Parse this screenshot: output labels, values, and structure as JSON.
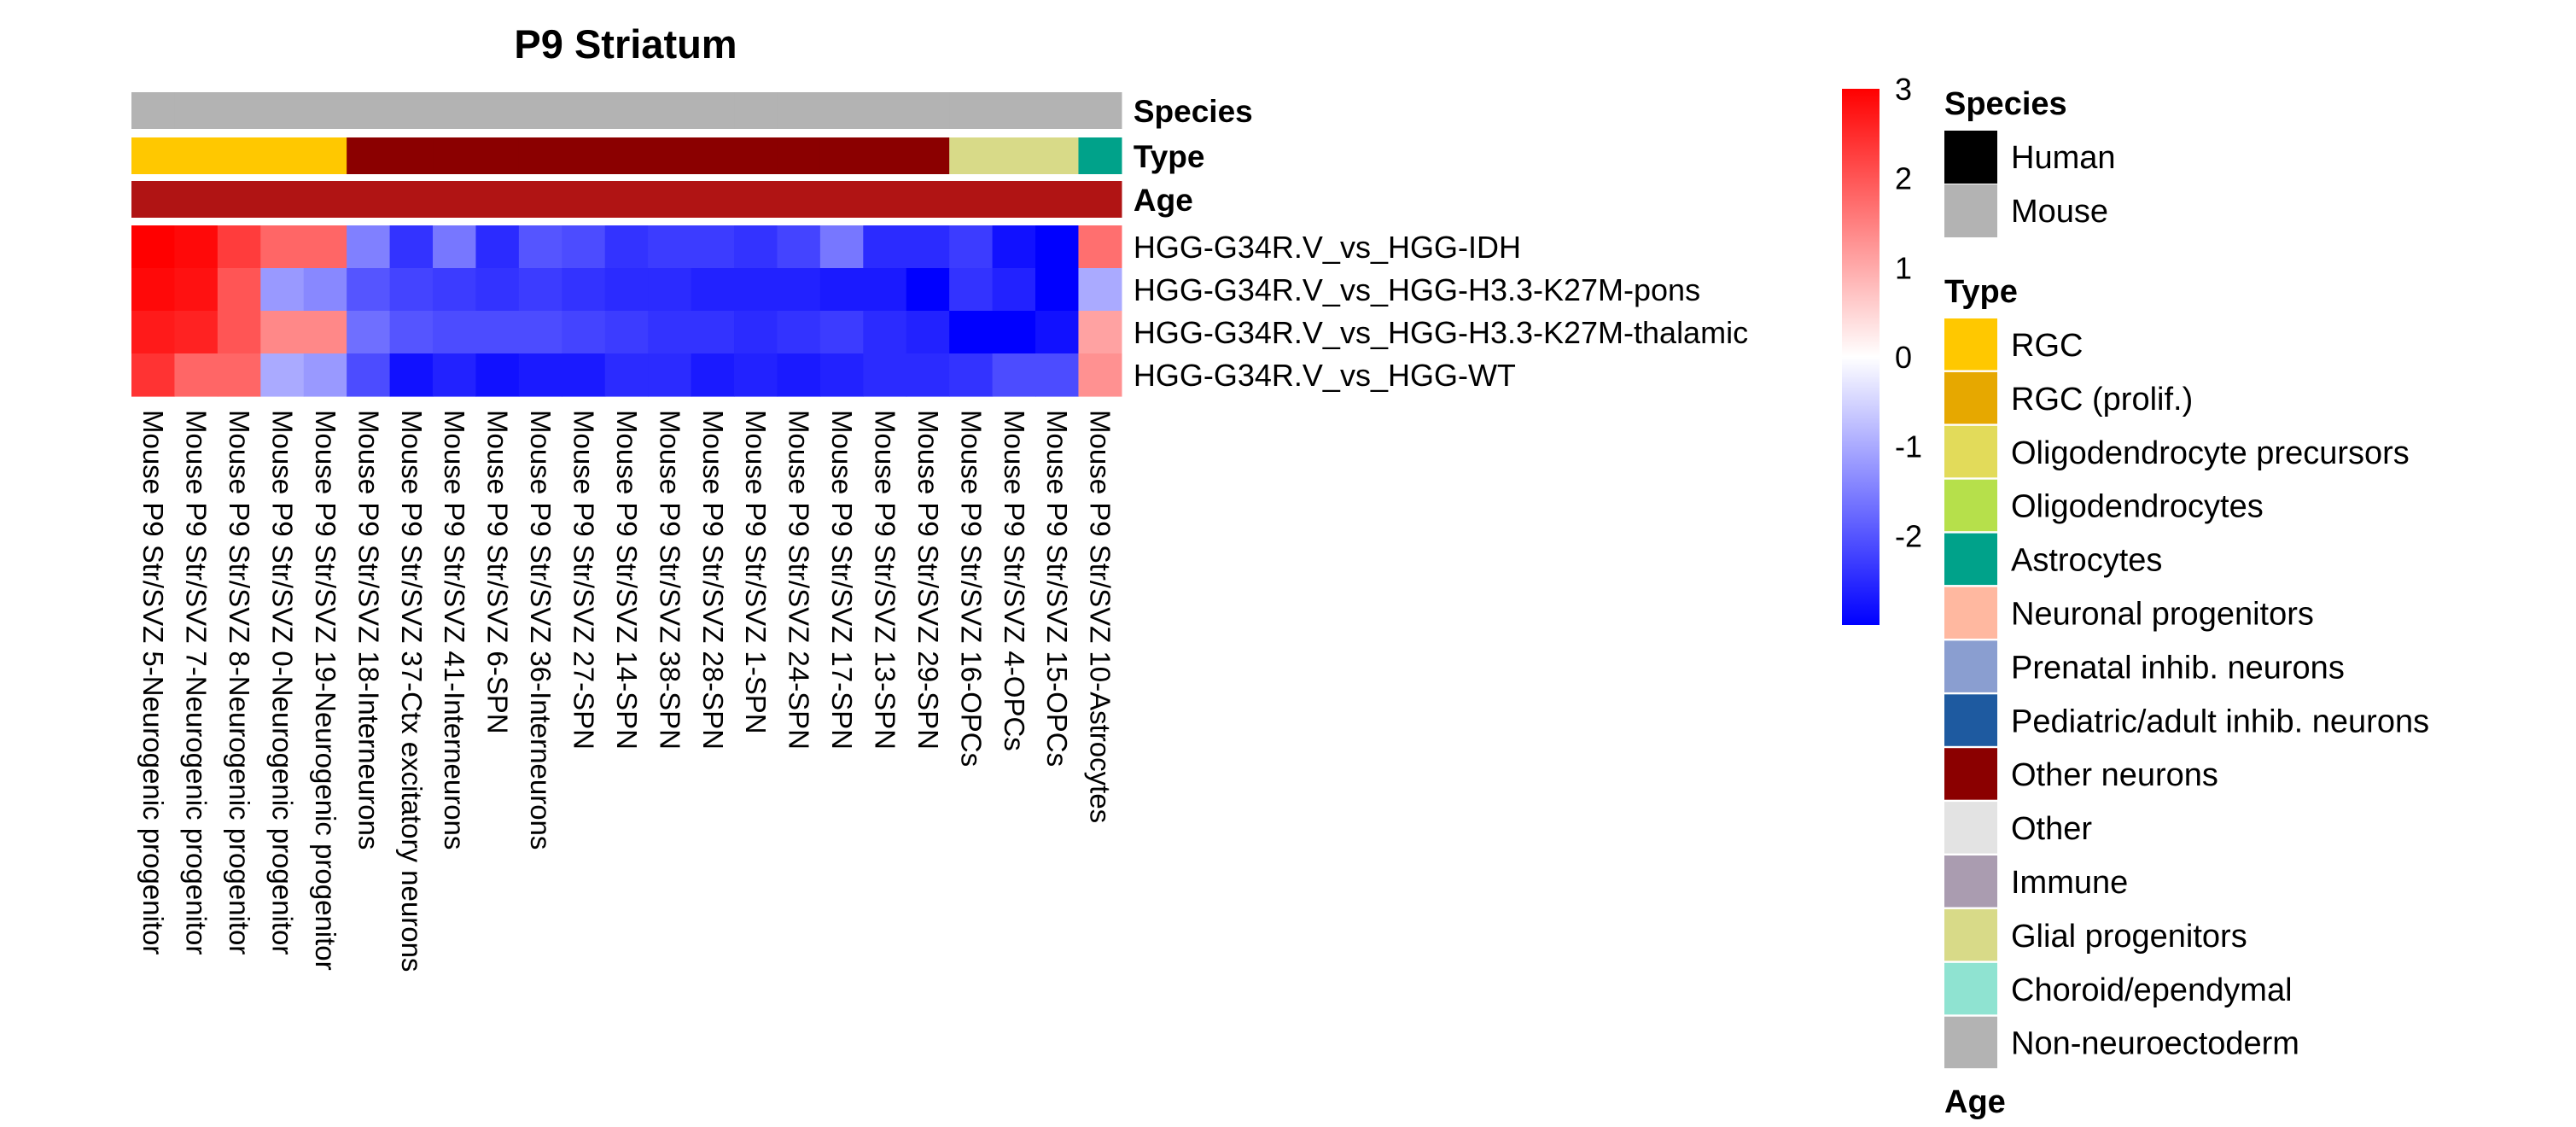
{
  "chart_data": {
    "type": "heatmap",
    "title": "P9 Striatum",
    "rows": [
      "HGG-G34R.V_vs_HGG-IDH",
      "HGG-G34R.V_vs_HGG-H3.3-K27M-pons",
      "HGG-G34R.V_vs_HGG-H3.3-K27M-thalamic",
      "HGG-G34R.V_vs_HGG-WT"
    ],
    "columns": [
      "Mouse P9 Str/SVZ 5-Neurogenic progenitor",
      "Mouse P9 Str/SVZ 7-Neurogenic progenitor",
      "Mouse P9 Str/SVZ 8-Neurogenic progenitor",
      "Mouse P9 Str/SVZ 0-Neurogenic progenitor",
      "Mouse P9 Str/SVZ 19-Neurogenic progenitor",
      "Mouse P9 Str/SVZ 18-Interneurons",
      "Mouse P9 Str/SVZ 37-Ctx excitatory neurons",
      "Mouse P9 Str/SVZ 41-Interneurons",
      "Mouse P9 Str/SVZ 6-SPN",
      "Mouse P9 Str/SVZ 36-Interneurons",
      "Mouse P9 Str/SVZ 27-SPN",
      "Mouse P9 Str/SVZ 14-SPN",
      "Mouse P9 Str/SVZ 38-SPN",
      "Mouse P9 Str/SVZ 28-SPN",
      "Mouse P9 Str/SVZ 1-SPN",
      "Mouse P9 Str/SVZ 24-SPN",
      "Mouse P9 Str/SVZ 17-SPN",
      "Mouse P9 Str/SVZ 13-SPN",
      "Mouse P9 Str/SVZ 29-SPN",
      "Mouse P9 Str/SVZ 16-OPCs",
      "Mouse P9 Str/SVZ 4-OPCs",
      "Mouse P9 Str/SVZ 15-OPCs",
      "Mouse P9 Str/SVZ 10-Astrocytes"
    ],
    "values": [
      [
        3.0,
        2.9,
        2.3,
        1.8,
        1.8,
        -1.5,
        -2.4,
        -1.6,
        -2.5,
        -2.0,
        -2.1,
        -2.4,
        -2.3,
        -2.3,
        -2.4,
        -2.2,
        -1.6,
        -2.5,
        -2.5,
        -2.3,
        -2.8,
        -3.0,
        1.7
      ],
      [
        2.9,
        2.8,
        2.0,
        -1.2,
        -1.4,
        -2.0,
        -2.2,
        -2.3,
        -2.4,
        -2.3,
        -2.4,
        -2.5,
        -2.5,
        -2.6,
        -2.6,
        -2.6,
        -2.7,
        -2.7,
        -3.0,
        -2.4,
        -2.6,
        -3.0,
        -1.0
      ],
      [
        2.7,
        2.6,
        2.0,
        1.4,
        1.4,
        -1.7,
        -2.0,
        -2.1,
        -2.1,
        -2.1,
        -2.2,
        -2.3,
        -2.4,
        -2.4,
        -2.5,
        -2.4,
        -2.3,
        -2.5,
        -2.6,
        -3.0,
        -3.0,
        -2.8,
        1.1
      ],
      [
        2.4,
        1.8,
        1.8,
        -1.0,
        -1.2,
        -2.1,
        -2.8,
        -2.6,
        -2.8,
        -2.7,
        -2.7,
        -2.5,
        -2.5,
        -2.7,
        -2.6,
        -2.7,
        -2.6,
        -2.5,
        -2.5,
        -2.4,
        -2.1,
        -2.1,
        1.3
      ]
    ],
    "color_scale": {
      "ticks": [
        "3",
        "2",
        "1",
        "0",
        "-1",
        "-2"
      ],
      "min": -3,
      "max": 3,
      "colors": [
        "#0000FF",
        "#FFFFFF",
        "#FF0000"
      ]
    },
    "annotation_tracks": [
      {
        "name": "Species",
        "values": [
          "Mouse",
          "Mouse",
          "Mouse",
          "Mouse",
          "Mouse",
          "Mouse",
          "Mouse",
          "Mouse",
          "Mouse",
          "Mouse",
          "Mouse",
          "Mouse",
          "Mouse",
          "Mouse",
          "Mouse",
          "Mouse",
          "Mouse",
          "Mouse",
          "Mouse",
          "Mouse",
          "Mouse",
          "Mouse",
          "Mouse"
        ]
      },
      {
        "name": "Type",
        "values": [
          "RGC",
          "RGC",
          "RGC",
          "RGC",
          "RGC",
          "Other neurons",
          "Other neurons",
          "Other neurons",
          "Other neurons",
          "Other neurons",
          "Other neurons",
          "Other neurons",
          "Other neurons",
          "Other neurons",
          "Other neurons",
          "Other neurons",
          "Other neurons",
          "Other neurons",
          "Other neurons",
          "Glial progenitors",
          "Glial progenitors",
          "Glial progenitors",
          "Astrocytes"
        ]
      },
      {
        "name": "Age",
        "values": [
          "P9",
          "P9",
          "P9",
          "P9",
          "P9",
          "P9",
          "P9",
          "P9",
          "P9",
          "P9",
          "P9",
          "P9",
          "P9",
          "P9",
          "P9",
          "P9",
          "P9",
          "P9",
          "P9",
          "P9",
          "P9",
          "P9",
          "P9"
        ]
      }
    ],
    "age_color": "#B01414",
    "legends": {
      "species": {
        "title": "Species",
        "items": [
          {
            "label": "Human",
            "color": "#000000"
          },
          {
            "label": "Mouse",
            "color": "#B3B3B3"
          }
        ]
      },
      "type": {
        "title": "Type",
        "items": [
          {
            "label": "RGC",
            "color": "#FFC800"
          },
          {
            "label": "RGC (prolif.)",
            "color": "#E6A800"
          },
          {
            "label": "Oligodendrocyte precursors",
            "color": "#E2DB5A"
          },
          {
            "label": "Oligodendrocytes",
            "color": "#B6E04B"
          },
          {
            "label": "Astrocytes",
            "color": "#00A28A"
          },
          {
            "label": "Neuronal progenitors",
            "color": "#FFB8A0"
          },
          {
            "label": "Prenatal inhib. neurons",
            "color": "#8A9ED0"
          },
          {
            "label": "Pediatric/adult inhib. neurons",
            "color": "#1E5AA0"
          },
          {
            "label": "Other neurons",
            "color": "#8B0000"
          },
          {
            "label": "Other",
            "color": "#E3E3E3"
          },
          {
            "label": "Immune",
            "color": "#AA9CB0"
          },
          {
            "label": "Glial progenitors",
            "color": "#D8DA88"
          },
          {
            "label": "Choroid/ependymal",
            "color": "#8FE3D1"
          },
          {
            "label": "Non-neuroectoderm",
            "color": "#B3B3B3"
          }
        ]
      },
      "age": {
        "title": "Age"
      }
    }
  }
}
